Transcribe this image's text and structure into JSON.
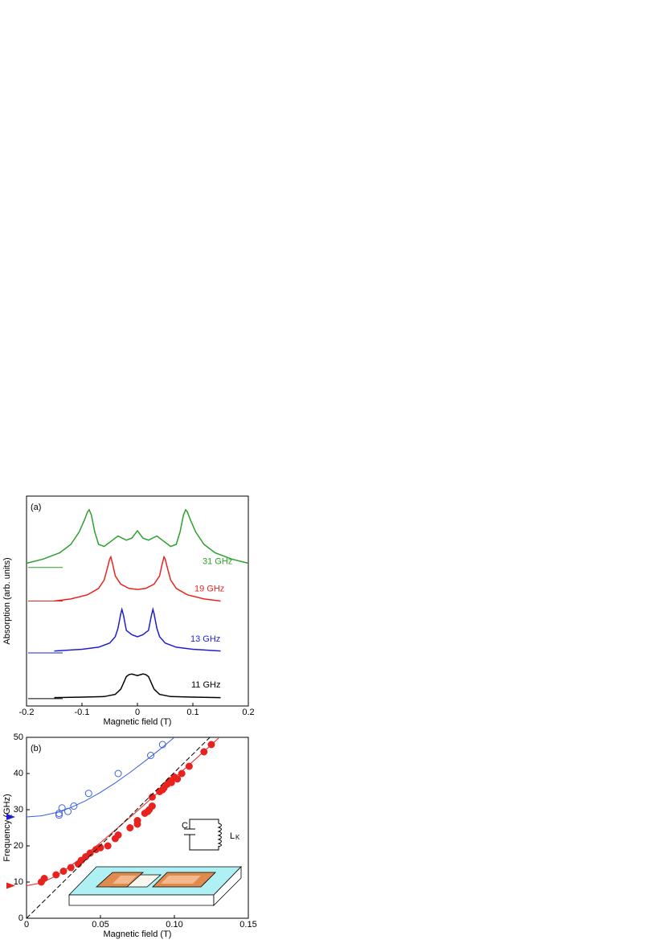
{
  "chart_data": [
    {
      "type": "line",
      "panel_label": "(a)",
      "xlabel": "Magnetic field (T)",
      "ylabel": "Absorption (arb. units)",
      "xlim": [
        -0.2,
        0.2
      ],
      "xticks": [
        -0.2,
        -0.1,
        0,
        0.1,
        0.2
      ],
      "ylim": [
        0,
        1
      ],
      "series": [
        {
          "name": "31 GHz",
          "color": "#2ca02c",
          "baseline": 0.66,
          "x": [
            -0.2,
            -0.17,
            -0.14,
            -0.12,
            -0.105,
            -0.095,
            -0.09,
            -0.087,
            -0.083,
            -0.077,
            -0.07,
            -0.06,
            -0.045,
            -0.035,
            -0.02,
            -0.01,
            0,
            0.01,
            0.02,
            0.035,
            0.045,
            0.06,
            0.07,
            0.077,
            0.083,
            0.087,
            0.09,
            0.095,
            0.105,
            0.12,
            0.14,
            0.17,
            0.2
          ],
          "values": [
            0.68,
            0.7,
            0.73,
            0.77,
            0.83,
            0.89,
            0.925,
            0.935,
            0.91,
            0.83,
            0.77,
            0.76,
            0.79,
            0.81,
            0.79,
            0.8,
            0.835,
            0.8,
            0.79,
            0.81,
            0.79,
            0.76,
            0.77,
            0.83,
            0.91,
            0.935,
            0.925,
            0.89,
            0.83,
            0.77,
            0.73,
            0.7,
            0.68
          ]
        },
        {
          "name": "19 GHz",
          "color": "#e8231f",
          "baseline": 0.5,
          "x": [
            -0.15,
            -0.12,
            -0.09,
            -0.07,
            -0.06,
            -0.055,
            -0.05,
            -0.048,
            -0.045,
            -0.04,
            -0.03,
            -0.015,
            0,
            0.015,
            0.03,
            0.04,
            0.045,
            0.048,
            0.05,
            0.055,
            0.06,
            0.07,
            0.09,
            0.12,
            0.15
          ],
          "values": [
            0.5,
            0.51,
            0.53,
            0.56,
            0.6,
            0.65,
            0.7,
            0.71,
            0.68,
            0.62,
            0.58,
            0.56,
            0.555,
            0.56,
            0.58,
            0.62,
            0.68,
            0.71,
            0.7,
            0.65,
            0.6,
            0.56,
            0.53,
            0.51,
            0.5
          ]
        },
        {
          "name": "13 GHz",
          "color": "#1f1fd0",
          "baseline": 0.253,
          "x": [
            -0.15,
            -0.1,
            -0.07,
            -0.05,
            -0.04,
            -0.035,
            -0.03,
            -0.028,
            -0.025,
            -0.02,
            -0.01,
            0,
            0.01,
            0.02,
            0.025,
            0.028,
            0.03,
            0.035,
            0.04,
            0.05,
            0.07,
            0.1,
            0.15
          ],
          "values": [
            0.262,
            0.27,
            0.28,
            0.3,
            0.33,
            0.37,
            0.44,
            0.46,
            0.43,
            0.36,
            0.34,
            0.33,
            0.34,
            0.36,
            0.43,
            0.46,
            0.44,
            0.37,
            0.33,
            0.3,
            0.28,
            0.27,
            0.262
          ]
        },
        {
          "name": "11 GHz",
          "color": "#000000",
          "baseline": 0.035,
          "x": [
            -0.15,
            -0.1,
            -0.06,
            -0.04,
            -0.03,
            -0.025,
            -0.02,
            -0.015,
            -0.01,
            0,
            0.01,
            0.015,
            0.02,
            0.025,
            0.03,
            0.04,
            0.06,
            0.1,
            0.15
          ],
          "values": [
            0.04,
            0.042,
            0.045,
            0.055,
            0.08,
            0.11,
            0.14,
            0.15,
            0.152,
            0.145,
            0.153,
            0.15,
            0.14,
            0.11,
            0.08,
            0.055,
            0.045,
            0.042,
            0.04
          ]
        }
      ]
    },
    {
      "type": "scatter",
      "panel_label": "(b)",
      "xlabel": "Magnetic field (T)",
      "ylabel": "Frequency (GHz)",
      "xlim": [
        0,
        0.15
      ],
      "xticks": [
        0,
        0.05,
        {
          "value": 0.1,
          "label": "0.10"
        },
        0.15
      ],
      "ylim": [
        0,
        50
      ],
      "yticks": [
        0,
        10,
        20,
        30,
        40,
        50
      ],
      "axis_markers": [
        {
          "value": 28,
          "color": "#1f1fd0"
        },
        {
          "value": 9,
          "color": "#e8231f"
        }
      ],
      "series": [
        {
          "kind": "open",
          "color": "#3a5fe0",
          "x": [
            0.022,
            0.022,
            0.024,
            0.028,
            0.032,
            0.042,
            0.062,
            0.084,
            0.092
          ],
          "values": [
            28.5,
            29,
            30.5,
            29.5,
            31,
            34.5,
            40,
            45,
            48
          ]
        },
        {
          "kind": "line",
          "color": "#3a5fe0",
          "x": [
            0,
            0.01,
            0.02,
            0.03,
            0.04,
            0.05,
            0.06,
            0.07,
            0.08,
            0.09,
            0.1
          ],
          "values": [
            28,
            28.3,
            29.2,
            30.6,
            32.5,
            34.8,
            37.4,
            40.3,
            43.4,
            46.6,
            50
          ]
        },
        {
          "kind": "filled",
          "color": "#e8231f",
          "x": [
            0.01,
            0.012,
            0.02,
            0.025,
            0.03,
            0.035,
            0.037,
            0.04,
            0.043,
            0.047,
            0.05,
            0.055,
            0.06,
            0.062,
            0.07,
            0.075,
            0.075,
            0.08,
            0.082,
            0.083,
            0.085,
            0.085,
            0.09,
            0.092,
            0.093,
            0.095,
            0.097,
            0.098,
            0.1,
            0.102,
            0.105,
            0.11,
            0.12,
            0.125
          ],
          "values": [
            10,
            11,
            12,
            13,
            14,
            15,
            16,
            17,
            18,
            19,
            19.5,
            20,
            22,
            23,
            25,
            26,
            27,
            29,
            29.5,
            30,
            31,
            33.5,
            35,
            35.5,
            36,
            37,
            38,
            37.5,
            39,
            38.5,
            40,
            42,
            46,
            48
          ]
        },
        {
          "kind": "line",
          "color": "#e8231f",
          "x": [
            0,
            0.01,
            0.02,
            0.03,
            0.04,
            0.05,
            0.06,
            0.07,
            0.08,
            0.09,
            0.1,
            0.11,
            0.12,
            0.13
          ],
          "values": [
            9,
            9.76,
            11.7,
            14.5,
            17.6,
            20.9,
            24.4,
            27.9,
            31.5,
            35.1,
            38.8,
            42.4,
            46.1,
            49.8
          ]
        },
        {
          "kind": "dashed",
          "color": "#000000",
          "x": [
            0,
            0.124
          ],
          "values": [
            0,
            50
          ]
        }
      ],
      "inset": {
        "capacitor": "C",
        "inductor": "L",
        "inductor_subscript": "K"
      }
    }
  ]
}
